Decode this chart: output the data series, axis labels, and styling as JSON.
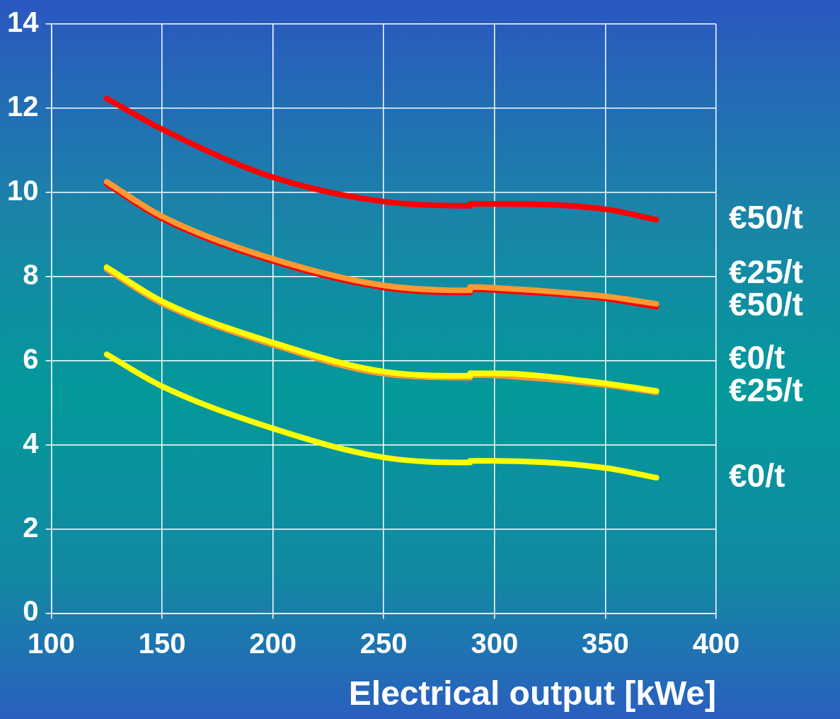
{
  "chart_data": {
    "type": "line",
    "xlabel": "Electrical output [kWe]",
    "xlim": [
      100,
      400
    ],
    "xticks": [
      100,
      150,
      200,
      250,
      300,
      350,
      400
    ],
    "ylim": [
      0,
      14
    ],
    "yticks": [
      0,
      2,
      4,
      6,
      8,
      10,
      12,
      14
    ],
    "grid": true,
    "marker": "none",
    "line_style": "solid",
    "series": [
      {
        "name": "€0/t",
        "color": "#ffff00",
        "x": [
          125,
          150,
          200,
          250,
          289,
          289,
          300,
          350,
          373
        ],
        "values": [
          6.15,
          5.39,
          4.39,
          3.7,
          3.58,
          3.62,
          3.62,
          3.45,
          3.22
        ]
      },
      {
        "name": "€0/t",
        "color": "#ffff00",
        "x": [
          125,
          150,
          200,
          250,
          289,
          289,
          300,
          350,
          373
        ],
        "values": [
          8.22,
          7.41,
          6.43,
          5.74,
          5.64,
          5.7,
          5.7,
          5.46,
          5.28
        ]
      },
      {
        "name": "€25/t",
        "color": "#ff9933",
        "x": [
          125,
          150,
          200,
          250,
          289,
          289,
          300,
          350,
          373
        ],
        "values": [
          8.17,
          7.36,
          6.38,
          5.69,
          5.6,
          5.66,
          5.65,
          5.42,
          5.25
        ]
      },
      {
        "name": "€25/t",
        "color": "#ff9933",
        "x": [
          125,
          150,
          200,
          250,
          289,
          289,
          300,
          350,
          373
        ],
        "values": [
          10.25,
          9.43,
          8.42,
          7.79,
          7.67,
          7.75,
          7.73,
          7.53,
          7.35
        ]
      },
      {
        "name": "€50/t",
        "color": "#ff0000",
        "x": [
          125,
          150,
          200,
          250,
          289,
          289,
          300,
          350,
          373
        ],
        "values": [
          10.2,
          9.38,
          8.37,
          7.74,
          7.62,
          7.7,
          7.68,
          7.48,
          7.28
        ]
      },
      {
        "name": "€50/t",
        "color": "#ff0000",
        "x": [
          125,
          150,
          200,
          250,
          289,
          289,
          300,
          350,
          373
        ],
        "values": [
          12.23,
          11.5,
          10.36,
          9.78,
          9.68,
          9.73,
          9.73,
          9.6,
          9.35
        ]
      }
    ]
  }
}
